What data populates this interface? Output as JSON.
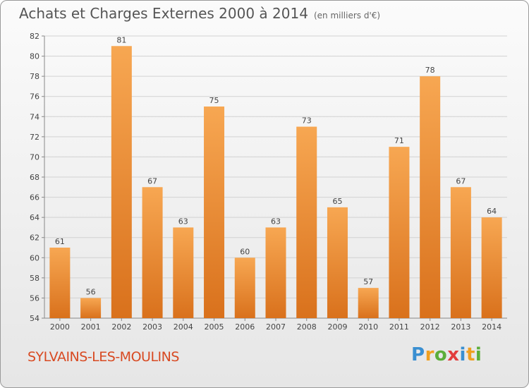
{
  "header": {
    "title": "Achats et Charges Externes 2000 à 2014",
    "subtitle": "(en milliers d'€)"
  },
  "footer": {
    "commune": "SYLVAINS-LES-MOULINS",
    "brand": "Proxiti"
  },
  "colors": {
    "bar_top": "#f7a752",
    "bar_bottom": "#d9711c",
    "commune_text": "#d84a22"
  },
  "chart_data": {
    "type": "bar",
    "title": "Achats et Charges Externes 2000 à 2014",
    "subtitle": "(en milliers d'€)",
    "xlabel": "",
    "ylabel": "",
    "categories": [
      "2000",
      "2001",
      "2002",
      "2003",
      "2004",
      "2005",
      "2006",
      "2007",
      "2008",
      "2009",
      "2010",
      "2011",
      "2012",
      "2013",
      "2014"
    ],
    "values": [
      61,
      56,
      81,
      67,
      63,
      75,
      60,
      63,
      73,
      65,
      57,
      71,
      78,
      67,
      64
    ],
    "ylim": [
      54,
      82
    ],
    "yticks": [
      54,
      56,
      58,
      60,
      62,
      64,
      66,
      68,
      70,
      72,
      74,
      76,
      78,
      80,
      82
    ],
    "grid": true,
    "legend": "none"
  }
}
